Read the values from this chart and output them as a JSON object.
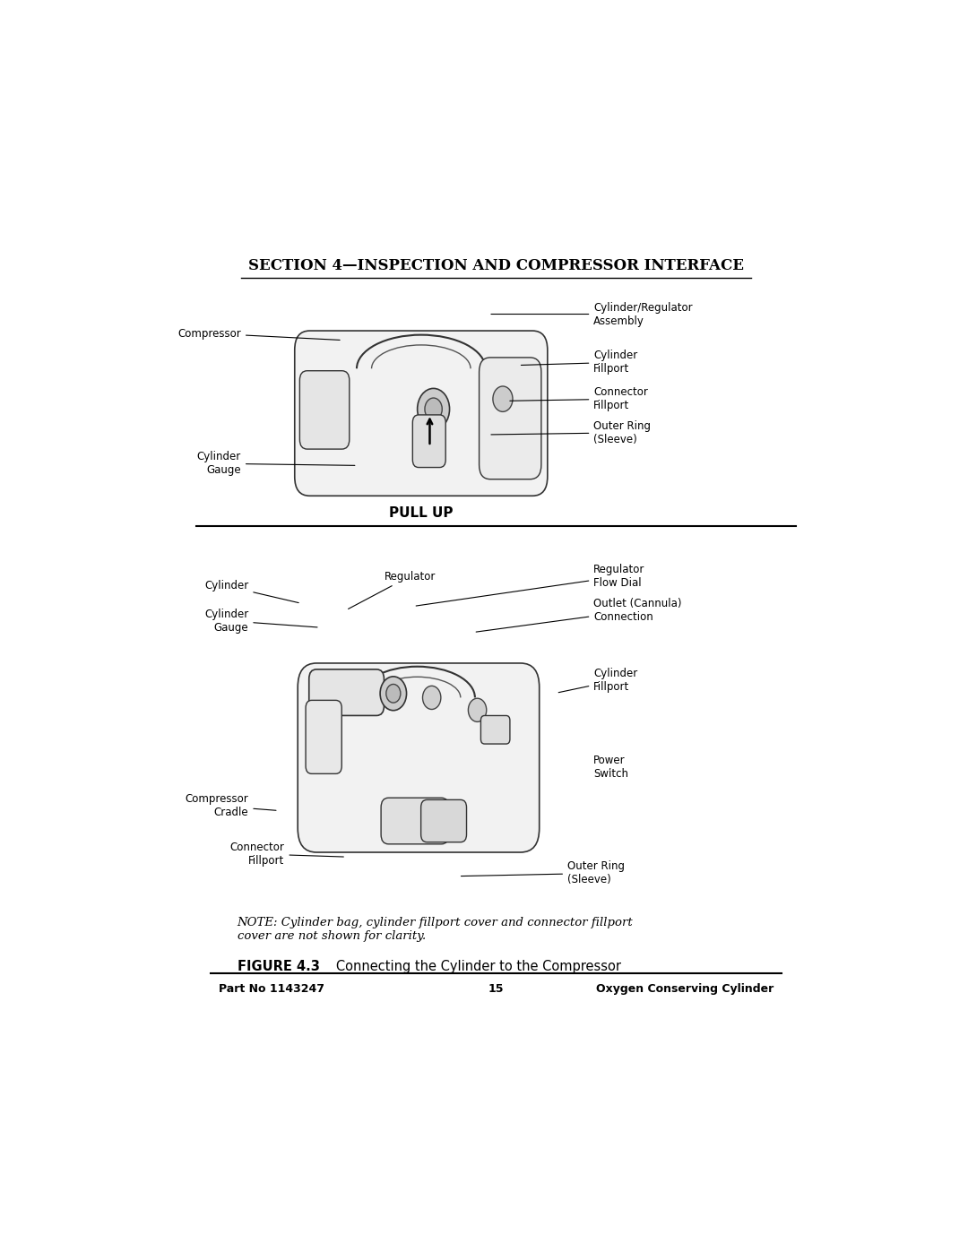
{
  "background_color": "#ffffff",
  "page_width": 10.8,
  "page_height": 13.97,
  "section_title": "SECTION 4—INSPECTION AND COMPRESSOR INTERFACE",
  "pull_up_label": "PULL UP",
  "note_text": "NOTE: Cylinder bag, cylinder fillport cover and connector fillport\ncover are not shown for clarity.",
  "figure_label_bold": "FIGURE 4.3",
  "figure_label_normal": "   Connecting the Cylinder to the Compressor",
  "footer_left": "Part No 1143247",
  "footer_center": "15",
  "footer_right": "Oxygen Conserving Cylinder"
}
